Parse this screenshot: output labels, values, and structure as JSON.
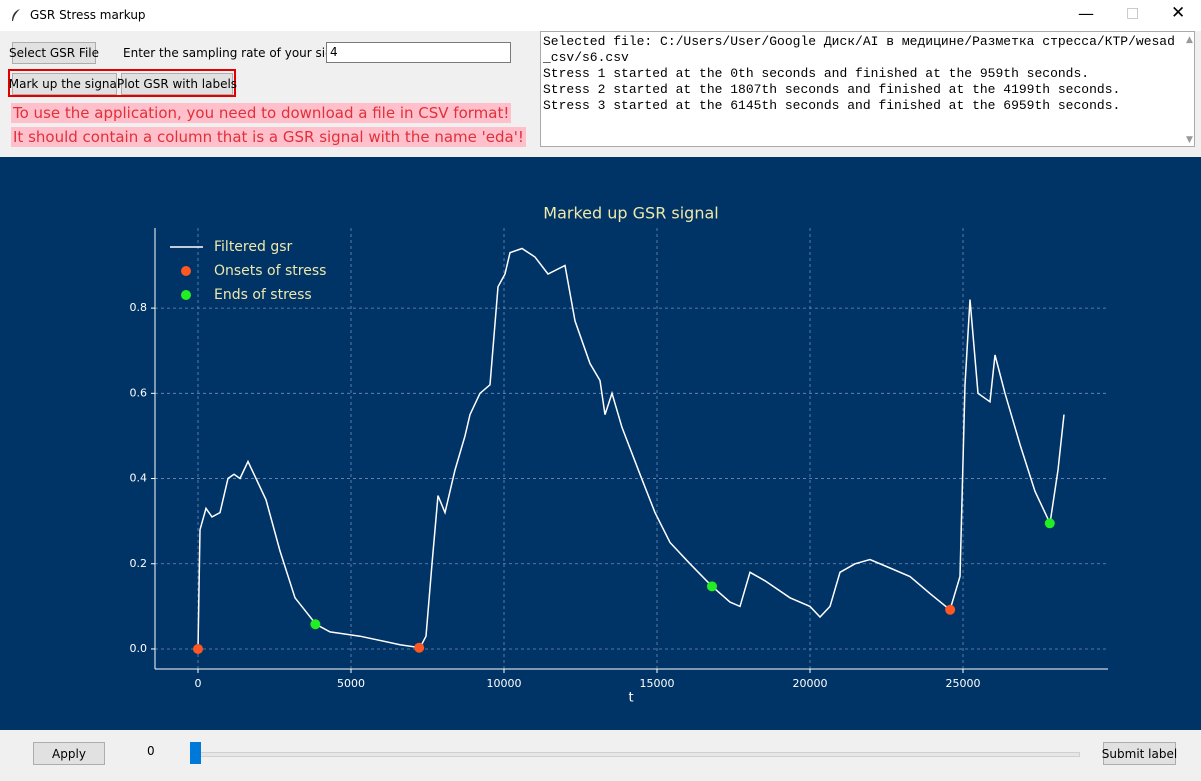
{
  "window": {
    "title": "GSR Stress markup"
  },
  "controls": {
    "select_button": "Select GSR File",
    "rate_label": "Enter the sampling rate of your signal:",
    "rate_value": "4",
    "markup_button": "Mark up the signal",
    "plot_button": "Plot GSR with labels"
  },
  "warnings": [
    "To use the application, you need to download a file in CSV format!",
    "It should contain a column that is a GSR signal with the name 'eda'!"
  ],
  "log": [
    "Selected file: C:/Users/User/Google Диск/AI в медицине/Разметка стресса/КТР/wesad_csv/s6.csv",
    "Stress 1 started at the 0th seconds and finished at the 959th seconds.",
    "Stress 2 started at the 1807th seconds and finished at the 4199th seconds.",
    "Stress 3 started at the 6145th seconds and finished at the 6959th seconds."
  ],
  "bottom": {
    "apply_button": "Apply",
    "slider_value": "0",
    "submit_button": "Submit label"
  },
  "chart_data": {
    "type": "line",
    "title": "Marked up GSR signal",
    "xlabel": "t",
    "xlim": [
      -1405,
      29738
    ],
    "ylim": [
      -0.047,
      0.988
    ],
    "xticks": [
      0,
      5000,
      10000,
      15000,
      20000,
      25000
    ],
    "yticks": [
      {
        "value": 0,
        "label": "0.0"
      },
      0.2,
      0.4,
      0.6,
      0.8
    ],
    "grid": true,
    "legend": "upper left",
    "series": [
      {
        "name": "Filtered gsr",
        "color": "#ffffff",
        "style": "line",
        "x": [
          0,
          65,
          261,
          458,
          719,
          980,
          1176,
          1373,
          1634,
          1895,
          2222,
          2680,
          3170,
          3856,
          4314,
          5294,
          6601,
          7255,
          7451,
          7647,
          7843,
          8072,
          8399,
          8725,
          8889,
          9216,
          9542,
          9804,
          10033,
          10196,
          10588,
          11013,
          11438,
          11993,
          12320,
          12810,
          13137,
          13301,
          13529,
          13856,
          14444,
          14935,
          15425,
          16078,
          16797,
          17386,
          17712,
          18039,
          18529,
          19346,
          19999,
          20327,
          20654,
          20980,
          21471,
          21961,
          22614,
          23268,
          23922,
          24575,
          24902,
          25065,
          25229,
          25490,
          25882,
          26046,
          26373,
          26863,
          27353,
          27843,
          28105,
          28301
        ],
        "values": [
          0,
          0.28,
          0.33,
          0.31,
          0.32,
          0.4,
          0.41,
          0.4,
          0.44,
          0.4,
          0.35,
          0.23,
          0.12,
          0.058,
          0.04,
          0.03,
          0.01,
          0.003,
          0.03,
          0.2,
          0.36,
          0.32,
          0.42,
          0.5,
          0.55,
          0.6,
          0.62,
          0.85,
          0.88,
          0.93,
          0.94,
          0.92,
          0.88,
          0.9,
          0.77,
          0.67,
          0.63,
          0.55,
          0.6,
          0.52,
          0.41,
          0.32,
          0.25,
          0.2,
          0.147,
          0.11,
          0.1,
          0.18,
          0.16,
          0.12,
          0.1,
          0.075,
          0.1,
          0.18,
          0.2,
          0.21,
          0.19,
          0.17,
          0.13,
          0.092,
          0.17,
          0.62,
          0.82,
          0.6,
          0.58,
          0.69,
          0.6,
          0.48,
          0.37,
          0.295,
          0.42,
          0.55
        ]
      },
      {
        "name": "Onsets of stress",
        "color": "#ff5722",
        "style": "points",
        "x": [
          0,
          7228,
          24580
        ],
        "values": [
          0,
          0.003,
          0.092
        ]
      },
      {
        "name": "Ends of stress",
        "color": "#22ee22",
        "style": "points",
        "x": [
          3836,
          16796,
          27836
        ],
        "values": [
          0.058,
          0.147,
          0.295
        ]
      }
    ]
  }
}
